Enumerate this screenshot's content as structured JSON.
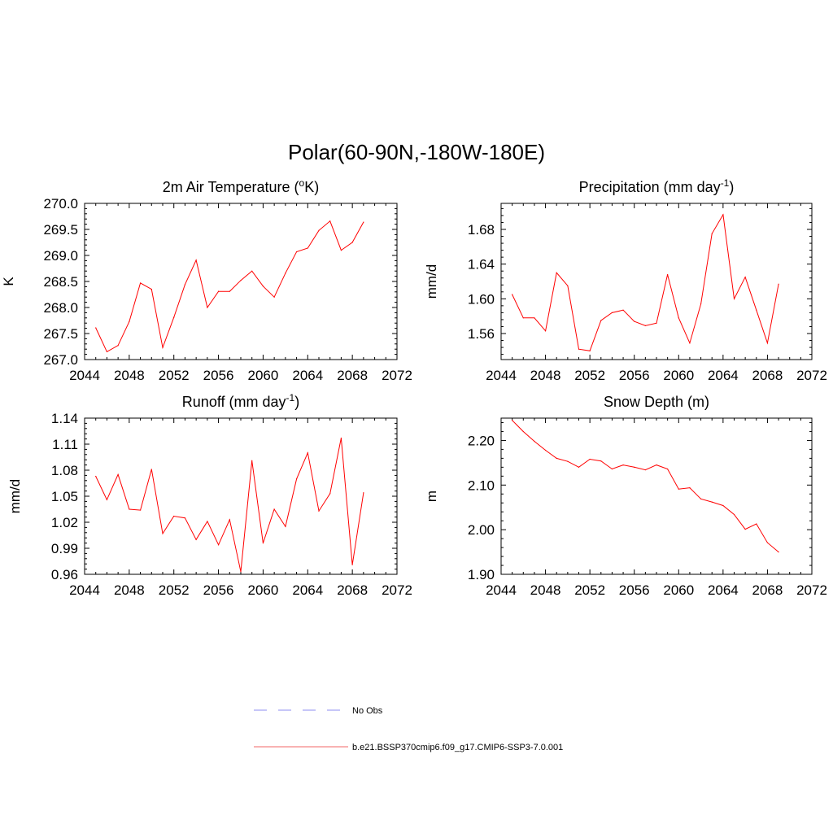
{
  "figure": {
    "title": "Polar(60-90N,-180W-180E)"
  },
  "legend": {
    "entries": [
      {
        "label": "No Obs",
        "color": "#8c8cf0",
        "style": "dashed"
      },
      {
        "label": "b.e21.BSSP370cmip6.f09_g17.CMIP6-SSP3-7.0.001",
        "color": "#f06464",
        "style": "solid"
      }
    ]
  },
  "chart_data": [
    {
      "type": "line",
      "title": "2m Air Temperature (",
      "title_sup": "o",
      "title_after": "K)",
      "title_suffix": "",
      "ylabel": "K",
      "xlim": [
        2044,
        2072
      ],
      "ylim": [
        267.0,
        270.0
      ],
      "xticks": [
        2044,
        2048,
        2052,
        2056,
        2060,
        2064,
        2068,
        2072
      ],
      "yticks": [
        "267.0",
        "267.5",
        "268.0",
        "268.5",
        "269.0",
        "269.5",
        "270.0"
      ],
      "series": [
        {
          "color": "#ff0000",
          "x": [
            2045,
            2046,
            2047,
            2048,
            2049,
            2050,
            2051,
            2052,
            2053,
            2054,
            2055,
            2056,
            2057,
            2058,
            2059,
            2060,
            2061,
            2062,
            2063,
            2064,
            2065,
            2066,
            2067,
            2068,
            2069
          ],
          "y": [
            267.61,
            267.15,
            267.27,
            267.73,
            268.47,
            268.35,
            267.23,
            267.81,
            268.44,
            268.91,
            268.0,
            268.31,
            268.31,
            268.52,
            268.7,
            268.41,
            268.2,
            268.66,
            269.07,
            269.14,
            269.48,
            269.66,
            269.1,
            269.25,
            269.64
          ]
        }
      ]
    },
    {
      "type": "line",
      "title": "Precipitation (mm day",
      "title_sup": "-1",
      "title_after": ")",
      "ylabel": "mm/d",
      "xlim": [
        2044,
        2072
      ],
      "ylim": [
        1.53,
        1.71
      ],
      "xticks": [
        2044,
        2048,
        2052,
        2056,
        2060,
        2064,
        2068,
        2072
      ],
      "yticks": [
        "1.56",
        "1.60",
        "1.64",
        "1.68"
      ],
      "series": [
        {
          "color": "#ff0000",
          "x": [
            2045,
            2046,
            2047,
            2048,
            2049,
            2050,
            2051,
            2052,
            2053,
            2054,
            2055,
            2056,
            2057,
            2058,
            2059,
            2060,
            2061,
            2062,
            2063,
            2064,
            2065,
            2066,
            2067,
            2068,
            2069
          ],
          "y": [
            1.605,
            1.578,
            1.578,
            1.563,
            1.63,
            1.615,
            1.542,
            1.54,
            1.575,
            1.584,
            1.587,
            1.574,
            1.569,
            1.572,
            1.628,
            1.578,
            1.549,
            1.594,
            1.675,
            1.697,
            1.6,
            1.625,
            1.587,
            1.549,
            1.617
          ]
        }
      ]
    },
    {
      "type": "line",
      "title": "Runoff (mm day",
      "title_sup": "-1",
      "title_after": ")",
      "ylabel": "mm/d",
      "xlim": [
        2044,
        2072
      ],
      "ylim": [
        0.96,
        1.14
      ],
      "xticks": [
        2044,
        2048,
        2052,
        2056,
        2060,
        2064,
        2068,
        2072
      ],
      "yticks": [
        "0.96",
        "0.99",
        "1.02",
        "1.05",
        "1.08",
        "1.11",
        "1.14"
      ],
      "series": [
        {
          "color": "#ff0000",
          "x": [
            2045,
            2046,
            2047,
            2048,
            2049,
            2050,
            2051,
            2052,
            2053,
            2054,
            2055,
            2056,
            2057,
            2058,
            2059,
            2060,
            2061,
            2062,
            2063,
            2064,
            2065,
            2066,
            2067,
            2068,
            2069
          ],
          "y": [
            1.073,
            1.046,
            1.075,
            1.035,
            1.034,
            1.081,
            1.007,
            1.027,
            1.025,
            1.0,
            1.021,
            0.994,
            1.023,
            0.963,
            1.091,
            0.996,
            1.035,
            1.015,
            1.07,
            1.1,
            1.033,
            1.053,
            1.117,
            0.971,
            1.054
          ]
        }
      ]
    },
    {
      "type": "line",
      "title": "Snow Depth (m)",
      "title_sup": "",
      "title_after": "",
      "ylabel": "m",
      "xlim": [
        2044,
        2072
      ],
      "ylim": [
        1.9,
        2.25
      ],
      "xticks": [
        2044,
        2048,
        2052,
        2056,
        2060,
        2064,
        2068,
        2072
      ],
      "yticks": [
        "1.90",
        "2.00",
        "2.10",
        "2.20"
      ],
      "series": [
        {
          "color": "#ff0000",
          "x": [
            2045,
            2046,
            2047,
            2048,
            2049,
            2050,
            2051,
            2052,
            2053,
            2054,
            2055,
            2056,
            2057,
            2058,
            2059,
            2060,
            2061,
            2062,
            2063,
            2064,
            2065,
            2066,
            2067,
            2068,
            2069
          ],
          "y": [
            2.245,
            2.22,
            2.198,
            2.178,
            2.16,
            2.153,
            2.14,
            2.158,
            2.154,
            2.136,
            2.145,
            2.14,
            2.134,
            2.145,
            2.136,
            2.091,
            2.094,
            2.069,
            2.062,
            2.054,
            2.034,
            2.001,
            2.013,
            1.971,
            1.95
          ]
        }
      ]
    }
  ]
}
